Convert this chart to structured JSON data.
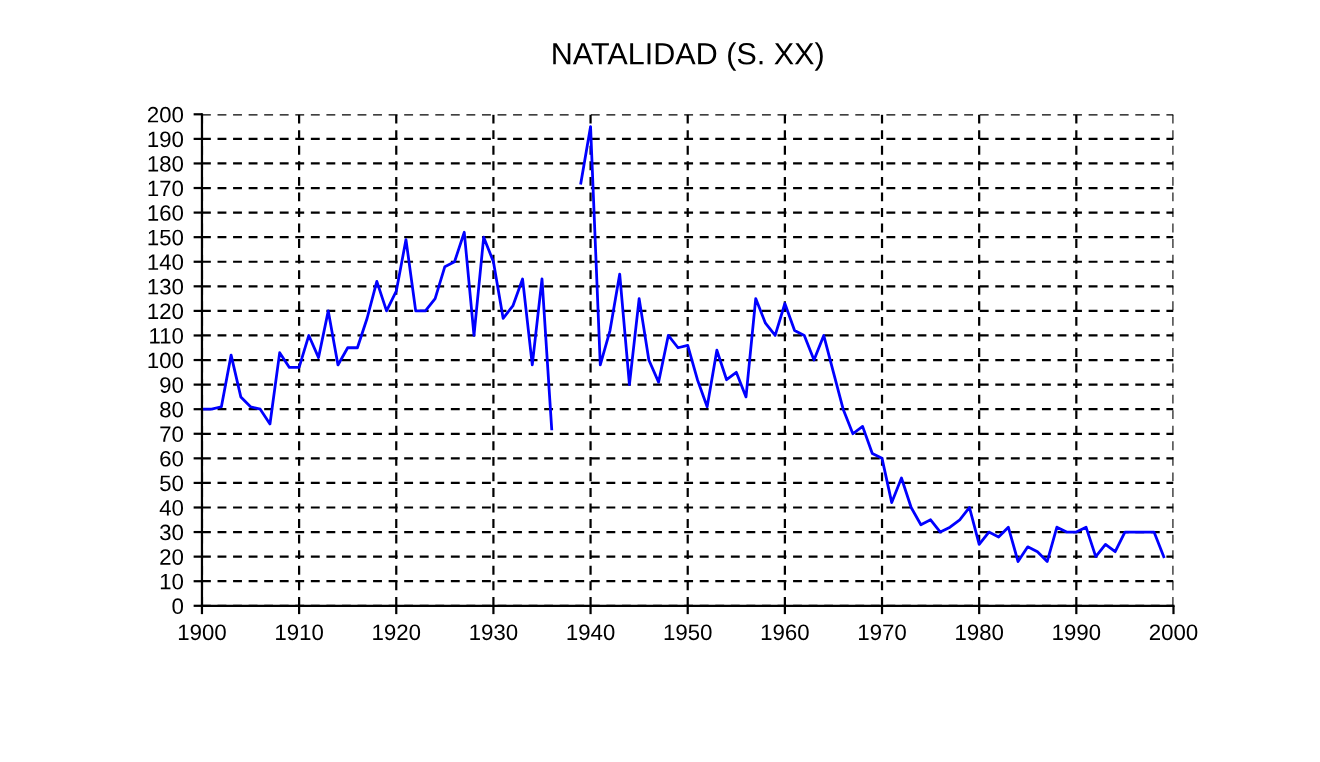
{
  "chart_data": {
    "type": "line",
    "title": "NATALIDAD (S. XX)",
    "x": [
      1900,
      1901,
      1902,
      1903,
      1904,
      1905,
      1906,
      1907,
      1908,
      1909,
      1910,
      1911,
      1912,
      1913,
      1914,
      1915,
      1916,
      1917,
      1918,
      1919,
      1920,
      1921,
      1922,
      1923,
      1924,
      1925,
      1926,
      1927,
      1928,
      1929,
      1930,
      1931,
      1932,
      1933,
      1934,
      1935,
      1936,
      1937,
      1938,
      1939,
      1940,
      1941,
      1942,
      1943,
      1944,
      1945,
      1946,
      1947,
      1948,
      1949,
      1950,
      1951,
      1952,
      1953,
      1954,
      1955,
      1956,
      1957,
      1958,
      1959,
      1960,
      1961,
      1962,
      1963,
      1964,
      1965,
      1966,
      1967,
      1968,
      1969,
      1970,
      1971,
      1972,
      1973,
      1974,
      1975,
      1976,
      1977,
      1978,
      1979,
      1980,
      1981,
      1982,
      1983,
      1984,
      1985,
      1986,
      1987,
      1988,
      1989,
      1990,
      1991,
      1992,
      1993,
      1994,
      1995,
      1996,
      1997,
      1998,
      1999
    ],
    "series": [
      {
        "color": "#0000ff",
        "values": [
          80,
          80,
          81,
          102,
          85,
          81,
          80,
          74,
          103,
          97,
          97,
          110,
          101,
          120,
          98,
          105,
          105,
          117,
          132,
          120,
          128,
          149,
          120,
          120,
          125,
          138,
          140,
          152,
          110,
          150,
          140,
          117,
          122,
          133,
          98,
          133,
          72,
          null,
          null,
          172,
          195,
          98,
          112,
          135,
          90,
          125,
          100,
          91,
          110,
          105,
          106,
          92,
          81,
          104,
          92,
          95,
          85,
          125,
          115,
          110,
          123,
          112,
          110,
          100,
          110,
          95,
          80,
          70,
          73,
          62,
          60,
          42,
          52,
          40,
          33,
          35,
          30,
          32,
          35,
          40,
          25,
          30,
          28,
          32,
          18,
          24,
          22,
          18,
          32,
          30,
          30,
          32,
          20,
          25,
          22,
          30,
          30,
          30,
          30,
          20
        ]
      }
    ],
    "xlim": [
      1900,
      2000
    ],
    "xticks": [
      1900,
      1910,
      1920,
      1930,
      1940,
      1950,
      1960,
      1970,
      1980,
      1990,
      2000
    ],
    "ylim": [
      0,
      200
    ],
    "yticks": [
      0,
      10,
      20,
      30,
      40,
      50,
      60,
      70,
      80,
      90,
      100,
      110,
      120,
      130,
      140,
      150,
      160,
      170,
      180,
      190,
      200
    ],
    "grid": true,
    "legend": false,
    "marker": "none",
    "line_style": "solid"
  }
}
